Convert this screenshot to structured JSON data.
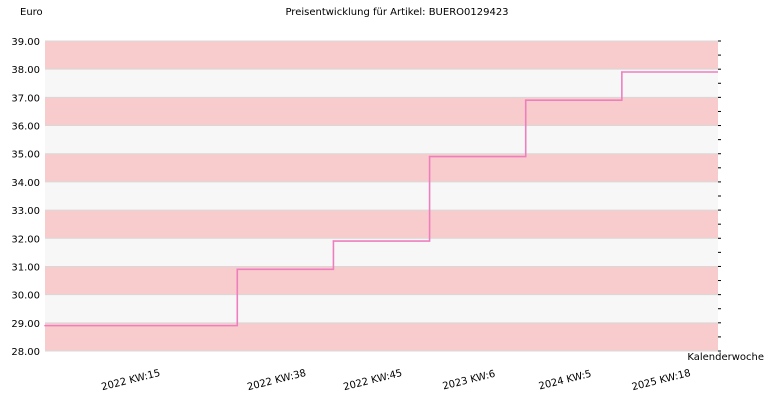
{
  "chart_data": {
    "type": "line",
    "step": true,
    "title": "Preisentwicklung für Artikel: BUERO0129423",
    "ylabel": "Euro",
    "xlabel": "Kalenderwoche",
    "ylim": [
      28.0,
      39.0
    ],
    "yticks": [
      "28.00",
      "29.00",
      "30.00",
      "31.00",
      "32.00",
      "33.00",
      "34.00",
      "35.00",
      "36.00",
      "37.00",
      "38.00",
      "39.00"
    ],
    "x_ticks": [
      "2022 KW:15",
      "2022 KW:38",
      "2022 KW:45",
      "2023 KW:6",
      "2024 KW:5",
      "2025 KW:18"
    ],
    "series": [
      {
        "values": [
          28.9,
          30.9,
          31.9,
          34.9,
          36.9,
          37.9
        ]
      }
    ],
    "grid": true,
    "band_colors": [
      "#f7f7f7",
      "#f8cccc"
    ],
    "line_color": "#ee7fbf"
  }
}
